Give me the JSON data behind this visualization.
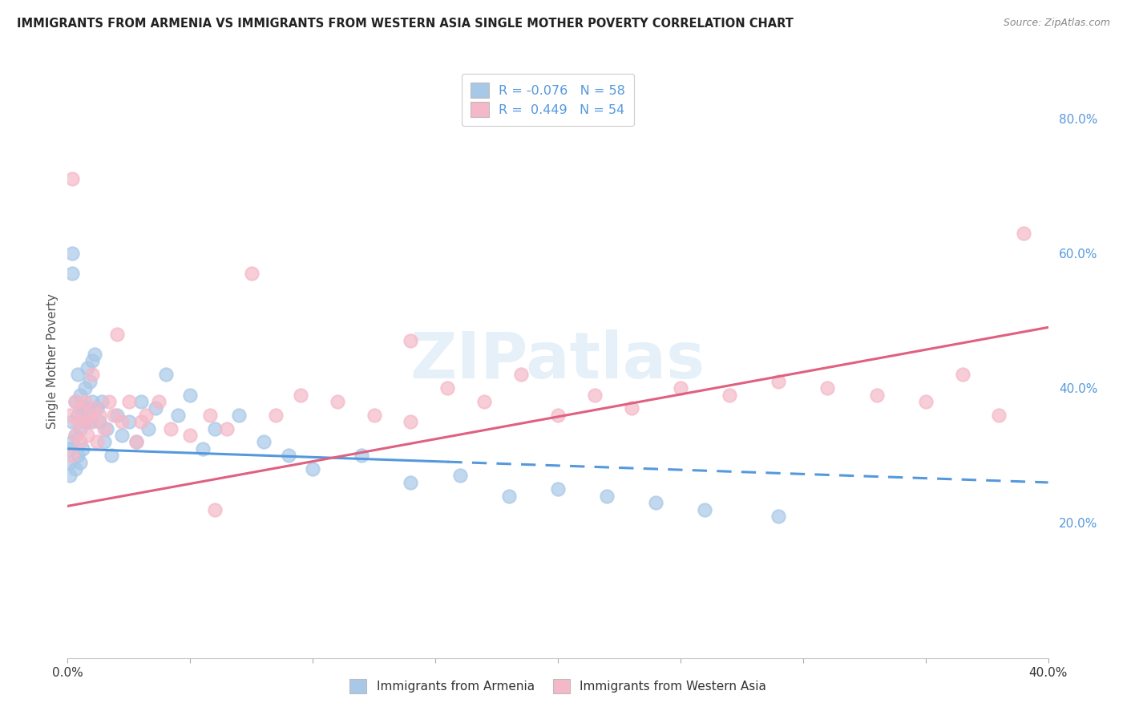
{
  "title": "IMMIGRANTS FROM ARMENIA VS IMMIGRANTS FROM WESTERN ASIA SINGLE MOTHER POVERTY CORRELATION CHART",
  "source": "Source: ZipAtlas.com",
  "ylabel": "Single Mother Poverty",
  "legend_label1": "Immigrants from Armenia",
  "legend_label2": "Immigrants from Western Asia",
  "R1": -0.076,
  "N1": 58,
  "R2": 0.449,
  "N2": 54,
  "color_armenia": "#a8c8e8",
  "color_western_asia": "#f5b8c8",
  "color_line_armenia": "#5599dd",
  "color_line_western_asia": "#e06080",
  "xlim": [
    0.0,
    0.4
  ],
  "ylim": [
    0.0,
    0.88
  ],
  "right_yticks": [
    0.2,
    0.4,
    0.6,
    0.8
  ],
  "right_yticklabels": [
    "20.0%",
    "40.0%",
    "60.0%",
    "80.0%"
  ],
  "armenia_x": [
    0.001,
    0.001,
    0.001,
    0.002,
    0.002,
    0.002,
    0.002,
    0.003,
    0.003,
    0.003,
    0.004,
    0.004,
    0.004,
    0.005,
    0.005,
    0.005,
    0.006,
    0.006,
    0.007,
    0.007,
    0.008,
    0.008,
    0.009,
    0.009,
    0.01,
    0.01,
    0.011,
    0.012,
    0.013,
    0.014,
    0.015,
    0.016,
    0.018,
    0.02,
    0.022,
    0.025,
    0.028,
    0.03,
    0.033,
    0.036,
    0.04,
    0.045,
    0.05,
    0.055,
    0.06,
    0.07,
    0.08,
    0.09,
    0.1,
    0.12,
    0.14,
    0.16,
    0.18,
    0.2,
    0.22,
    0.24,
    0.26,
    0.29
  ],
  "armenia_y": [
    0.31,
    0.29,
    0.27,
    0.6,
    0.57,
    0.35,
    0.32,
    0.38,
    0.33,
    0.28,
    0.42,
    0.36,
    0.3,
    0.39,
    0.34,
    0.29,
    0.37,
    0.31,
    0.4,
    0.35,
    0.43,
    0.37,
    0.41,
    0.35,
    0.44,
    0.38,
    0.45,
    0.37,
    0.35,
    0.38,
    0.32,
    0.34,
    0.3,
    0.36,
    0.33,
    0.35,
    0.32,
    0.38,
    0.34,
    0.37,
    0.42,
    0.36,
    0.39,
    0.31,
    0.34,
    0.36,
    0.32,
    0.3,
    0.28,
    0.3,
    0.26,
    0.27,
    0.24,
    0.25,
    0.24,
    0.23,
    0.22,
    0.21
  ],
  "western_asia_x": [
    0.001,
    0.002,
    0.002,
    0.003,
    0.003,
    0.004,
    0.005,
    0.005,
    0.006,
    0.007,
    0.008,
    0.009,
    0.01,
    0.011,
    0.012,
    0.013,
    0.015,
    0.017,
    0.019,
    0.022,
    0.025,
    0.028,
    0.032,
    0.037,
    0.042,
    0.05,
    0.058,
    0.065,
    0.075,
    0.085,
    0.095,
    0.11,
    0.125,
    0.14,
    0.155,
    0.17,
    0.185,
    0.2,
    0.215,
    0.23,
    0.25,
    0.27,
    0.29,
    0.31,
    0.33,
    0.35,
    0.365,
    0.38,
    0.39,
    0.01,
    0.02,
    0.03,
    0.06,
    0.14
  ],
  "western_asia_y": [
    0.36,
    0.71,
    0.3,
    0.38,
    0.33,
    0.35,
    0.37,
    0.32,
    0.35,
    0.38,
    0.33,
    0.36,
    0.35,
    0.37,
    0.32,
    0.36,
    0.34,
    0.38,
    0.36,
    0.35,
    0.38,
    0.32,
    0.36,
    0.38,
    0.34,
    0.33,
    0.36,
    0.34,
    0.57,
    0.36,
    0.39,
    0.38,
    0.36,
    0.47,
    0.4,
    0.38,
    0.42,
    0.36,
    0.39,
    0.37,
    0.4,
    0.39,
    0.41,
    0.4,
    0.39,
    0.38,
    0.42,
    0.36,
    0.63,
    0.42,
    0.48,
    0.35,
    0.22,
    0.35
  ],
  "line1_x0": 0.0,
  "line1_x1": 0.4,
  "line1_y0": 0.31,
  "line1_y1": 0.26,
  "line1_solid_end_x": 0.155,
  "line2_x0": 0.0,
  "line2_x1": 0.4,
  "line2_y0": 0.225,
  "line2_y1": 0.49
}
